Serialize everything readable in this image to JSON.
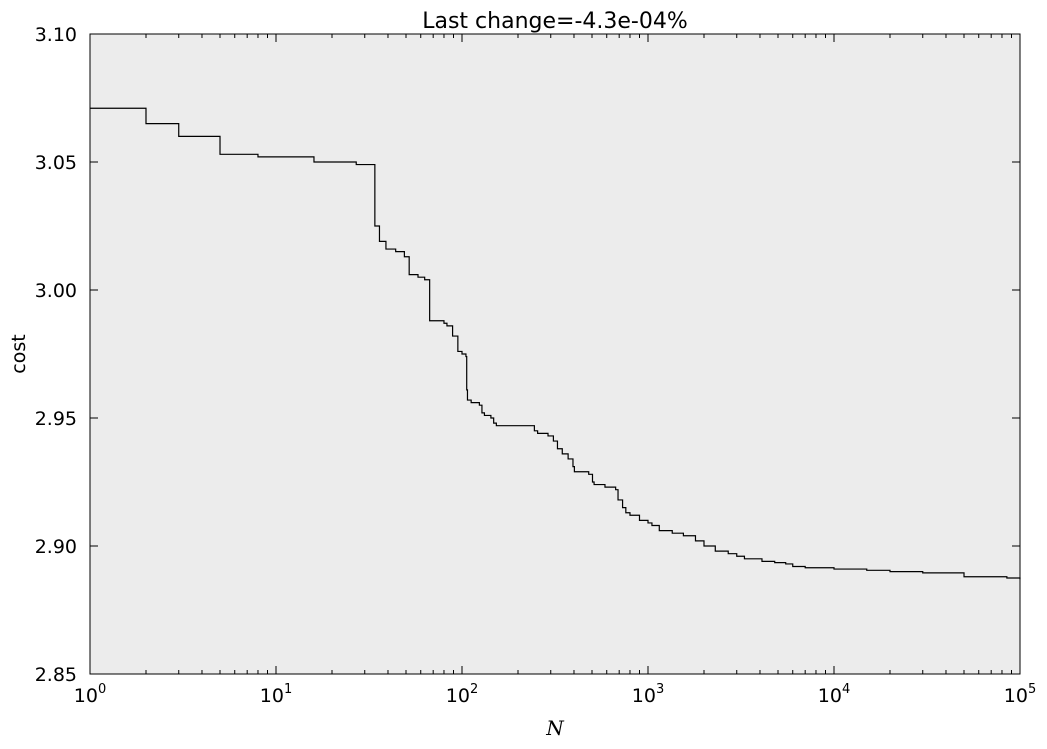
{
  "chart_data": {
    "type": "line",
    "title": "Last change=-4.3e-04%",
    "xlabel": "N",
    "ylabel": "cost",
    "xscale": "log",
    "xlim": [
      1,
      100000
    ],
    "ylim": [
      2.85,
      3.1
    ],
    "grid": false,
    "legend": "none",
    "x_ticks": [
      {
        "base": "10",
        "exp": "0",
        "value": 1
      },
      {
        "base": "10",
        "exp": "1",
        "value": 10
      },
      {
        "base": "10",
        "exp": "2",
        "value": 100
      },
      {
        "base": "10",
        "exp": "3",
        "value": 1000
      },
      {
        "base": "10",
        "exp": "4",
        "value": 10000
      },
      {
        "base": "10",
        "exp": "5",
        "value": 100000
      }
    ],
    "y_ticks": [
      "2.85",
      "2.90",
      "2.95",
      "3.00",
      "3.05",
      "3.10"
    ],
    "colors": {
      "plot_background": "#ececec",
      "line": "#000000",
      "frame": "#000000"
    },
    "series": [
      {
        "step": true,
        "x": [
          1,
          2,
          3,
          4,
          5,
          7,
          8,
          15,
          16,
          26,
          27,
          33,
          34,
          36,
          39,
          44,
          49,
          52,
          53,
          58,
          63,
          66,
          67,
          80,
          83,
          84,
          89,
          94,
          95,
          100,
          105,
          106,
          107,
          112,
          124,
          128,
          132,
          143,
          148,
          153,
          160,
          230,
          245,
          255,
          290,
          310,
          326,
          346,
          372,
          395,
          402,
          480,
          503,
          513,
          587,
          670,
          690,
          730,
          760,
          800,
          900,
          1000,
          1050,
          1150,
          1350,
          1550,
          1800,
          2000,
          2300,
          2700,
          3000,
          3300,
          4100,
          4800,
          5500,
          6000,
          7000,
          10000,
          15000,
          20000,
          30000,
          50000,
          85000,
          100000
        ],
        "y": [
          3.071,
          3.065,
          3.06,
          3.06,
          3.053,
          3.053,
          3.052,
          3.052,
          3.05,
          3.05,
          3.049,
          3.049,
          3.025,
          3.019,
          3.016,
          3.015,
          3.013,
          3.006,
          3.006,
          3.005,
          3.004,
          3.004,
          2.988,
          2.987,
          2.986,
          2.986,
          2.982,
          2.982,
          2.976,
          2.975,
          2.974,
          2.961,
          2.957,
          2.956,
          2.955,
          2.952,
          2.951,
          2.95,
          2.948,
          2.947,
          2.947,
          2.947,
          2.945,
          2.944,
          2.943,
          2.941,
          2.938,
          2.936,
          2.934,
          2.931,
          2.929,
          2.928,
          2.925,
          2.924,
          2.923,
          2.922,
          2.918,
          2.915,
          2.913,
          2.912,
          2.91,
          2.909,
          2.908,
          2.906,
          2.905,
          2.904,
          2.902,
          2.9,
          2.898,
          2.897,
          2.896,
          2.895,
          2.894,
          2.8935,
          2.893,
          2.892,
          2.8915,
          2.891,
          2.8905,
          2.89,
          2.8895,
          2.888,
          2.8875,
          2.887
        ]
      }
    ]
  }
}
